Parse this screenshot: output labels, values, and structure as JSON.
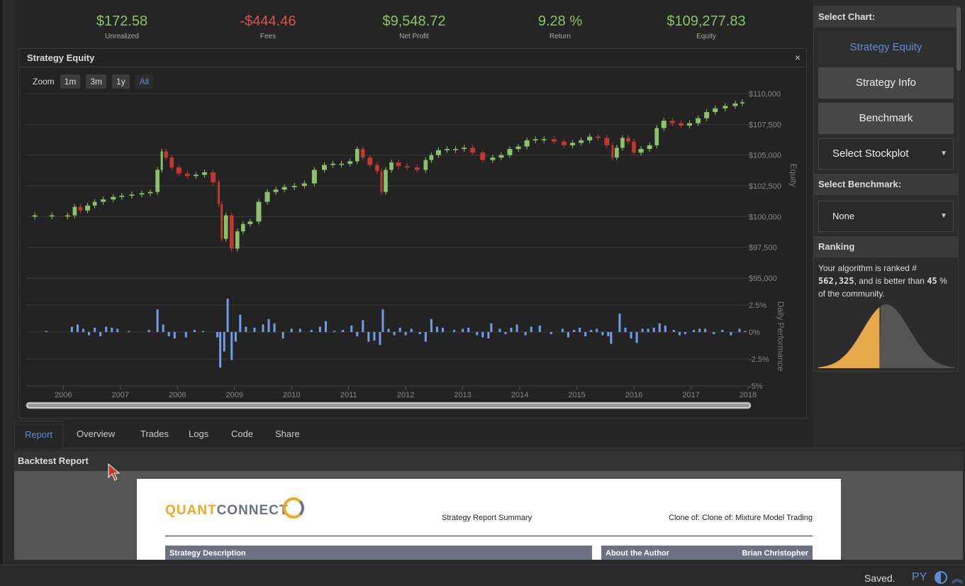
{
  "stats": [
    {
      "value": "$172.58",
      "label": "Unrealized",
      "tone": "green"
    },
    {
      "value": "-$444.46",
      "label": "Fees",
      "tone": "red"
    },
    {
      "value": "$9,548.72",
      "label": "Net Profit",
      "tone": "green"
    },
    {
      "value": "9.28 %",
      "label": "Return",
      "tone": "green"
    },
    {
      "value": "$109,277.83",
      "label": "Equity",
      "tone": "green"
    }
  ],
  "panel": {
    "title": "Strategy Equity",
    "close": "×"
  },
  "zoom": {
    "label": "Zoom",
    "buttons": [
      "1m",
      "3m",
      "1y",
      "All"
    ],
    "active": "All"
  },
  "chart_data": {
    "type": "candlestick",
    "equity_axis_label": "Equity",
    "equity_ticks": [
      "$110,000",
      "$107,500",
      "$105,000",
      "$102,500",
      "$100,000",
      "$97,500",
      "$95,000"
    ],
    "equity_ylim": [
      95000,
      110000
    ],
    "perf_axis_label": "Daily Performance",
    "perf_ticks": [
      "2.5%",
      "0%",
      "-2.5%",
      "-5%"
    ],
    "perf_ylim": [
      -5,
      2.5
    ],
    "x_ticks": [
      "2006",
      "2007",
      "2008",
      "2009",
      "2010",
      "2011",
      "2012",
      "2013",
      "2014",
      "2015",
      "2016",
      "2017",
      "2018"
    ],
    "colors": {
      "up": "#8bc36a",
      "down": "#c0392b",
      "bar": "#6f9fe8",
      "grid": "#3a3a3a"
    },
    "equity_path": [
      [
        2005.4,
        100000
      ],
      [
        2005.6,
        100100
      ],
      [
        2006.0,
        100100
      ],
      [
        2006.15,
        100100
      ],
      [
        2006.25,
        100800
      ],
      [
        2006.35,
        100500
      ],
      [
        2006.5,
        100900
      ],
      [
        2006.6,
        101200
      ],
      [
        2006.8,
        101400
      ],
      [
        2006.95,
        101600
      ],
      [
        2007.1,
        101700
      ],
      [
        2007.3,
        101800
      ],
      [
        2007.45,
        101900
      ],
      [
        2007.6,
        102000
      ],
      [
        2007.7,
        103800
      ],
      [
        2007.75,
        105300
      ],
      [
        2007.85,
        104800
      ],
      [
        2007.95,
        104000
      ],
      [
        2008.1,
        103500
      ],
      [
        2008.25,
        103300
      ],
      [
        2008.4,
        103400
      ],
      [
        2008.55,
        103600
      ],
      [
        2008.7,
        102800
      ],
      [
        2008.75,
        101000
      ],
      [
        2008.8,
        98200
      ],
      [
        2008.9,
        100100
      ],
      [
        2009.0,
        97400
      ],
      [
        2009.1,
        98800
      ],
      [
        2009.2,
        99400
      ],
      [
        2009.35,
        99600
      ],
      [
        2009.5,
        101200
      ],
      [
        2009.65,
        102000
      ],
      [
        2009.8,
        102200
      ],
      [
        2009.95,
        102400
      ],
      [
        2010.15,
        102500
      ],
      [
        2010.3,
        102700
      ],
      [
        2010.5,
        103800
      ],
      [
        2010.65,
        104200
      ],
      [
        2010.8,
        104300
      ],
      [
        2010.95,
        104300
      ],
      [
        2011.1,
        104500
      ],
      [
        2011.2,
        105500
      ],
      [
        2011.3,
        104800
      ],
      [
        2011.45,
        104200
      ],
      [
        2011.55,
        103700
      ],
      [
        2011.6,
        102000
      ],
      [
        2011.7,
        103800
      ],
      [
        2011.8,
        104400
      ],
      [
        2011.95,
        104100
      ],
      [
        2012.1,
        104000
      ],
      [
        2012.3,
        103800
      ],
      [
        2012.4,
        104600
      ],
      [
        2012.5,
        105000
      ],
      [
        2012.65,
        105400
      ],
      [
        2012.8,
        105500
      ],
      [
        2012.95,
        105500
      ],
      [
        2013.1,
        105600
      ],
      [
        2013.25,
        105200
      ],
      [
        2013.45,
        104600
      ],
      [
        2013.6,
        104800
      ],
      [
        2013.75,
        105000
      ],
      [
        2013.9,
        105500
      ],
      [
        2014.05,
        105700
      ],
      [
        2014.2,
        106200
      ],
      [
        2014.35,
        106300
      ],
      [
        2014.5,
        106300
      ],
      [
        2014.7,
        106100
      ],
      [
        2014.85,
        105800
      ],
      [
        2015.0,
        106000
      ],
      [
        2015.15,
        106200
      ],
      [
        2015.3,
        106500
      ],
      [
        2015.45,
        106400
      ],
      [
        2015.6,
        105800
      ],
      [
        2015.65,
        104800
      ],
      [
        2015.75,
        105600
      ],
      [
        2015.85,
        106400
      ],
      [
        2015.95,
        106100
      ],
      [
        2016.05,
        105200
      ],
      [
        2016.2,
        105500
      ],
      [
        2016.35,
        105800
      ],
      [
        2016.45,
        107200
      ],
      [
        2016.6,
        107800
      ],
      [
        2016.75,
        107600
      ],
      [
        2016.9,
        107400
      ],
      [
        2017.05,
        107600
      ],
      [
        2017.2,
        108000
      ],
      [
        2017.35,
        108500
      ],
      [
        2017.5,
        108800
      ],
      [
        2017.7,
        109000
      ],
      [
        2017.85,
        109200
      ],
      [
        2017.95,
        109300
      ]
    ],
    "perf_bars": [
      [
        2005.7,
        0.1
      ],
      [
        2006.15,
        0.5
      ],
      [
        2006.25,
        0.7
      ],
      [
        2006.35,
        0.3
      ],
      [
        2006.45,
        -0.3
      ],
      [
        2006.55,
        0.4
      ],
      [
        2006.65,
        -0.4
      ],
      [
        2006.75,
        0.5
      ],
      [
        2006.85,
        0.4
      ],
      [
        2006.95,
        0.3
      ],
      [
        2007.15,
        0.1
      ],
      [
        2007.5,
        0.2
      ],
      [
        2007.65,
        2.1
      ],
      [
        2007.75,
        0.7
      ],
      [
        2007.85,
        -0.4
      ],
      [
        2007.95,
        -0.6
      ],
      [
        2008.15,
        -0.5
      ],
      [
        2008.3,
        0.2
      ],
      [
        2008.45,
        0.1
      ],
      [
        2008.7,
        -0.5
      ],
      [
        2008.75,
        -3.3
      ],
      [
        2008.82,
        -1.8
      ],
      [
        2008.88,
        3.1
      ],
      [
        2008.95,
        -2.6
      ],
      [
        2009.02,
        -0.9
      ],
      [
        2009.1,
        1.6
      ],
      [
        2009.2,
        0.5
      ],
      [
        2009.35,
        0.4
      ],
      [
        2009.5,
        0.7
      ],
      [
        2009.6,
        1.2
      ],
      [
        2009.7,
        0.8
      ],
      [
        2009.85,
        -0.6
      ],
      [
        2010.0,
        0.3
      ],
      [
        2010.15,
        0.3
      ],
      [
        2010.35,
        0.2
      ],
      [
        2010.5,
        0.5
      ],
      [
        2010.6,
        1.0
      ],
      [
        2010.75,
        0.1
      ],
      [
        2010.9,
        0.2
      ],
      [
        2011.05,
        0.6
      ],
      [
        2011.15,
        -0.4
      ],
      [
        2011.25,
        1.1
      ],
      [
        2011.35,
        -0.9
      ],
      [
        2011.45,
        -0.8
      ],
      [
        2011.55,
        -1.2
      ],
      [
        2011.6,
        2.1
      ],
      [
        2011.7,
        0.3
      ],
      [
        2011.8,
        -0.3
      ],
      [
        2011.9,
        0.4
      ],
      [
        2012.0,
        -0.3
      ],
      [
        2012.1,
        0.3
      ],
      [
        2012.25,
        -0.2
      ],
      [
        2012.35,
        -0.9
      ],
      [
        2012.45,
        1.2
      ],
      [
        2012.55,
        0.5
      ],
      [
        2012.65,
        0.4
      ],
      [
        2012.85,
        0.2
      ],
      [
        2013.0,
        0.3
      ],
      [
        2013.1,
        0.4
      ],
      [
        2013.25,
        -0.3
      ],
      [
        2013.35,
        -0.5
      ],
      [
        2013.45,
        -0.6
      ],
      [
        2013.5,
        0.8
      ],
      [
        2013.65,
        0.3
      ],
      [
        2013.75,
        -0.2
      ],
      [
        2013.85,
        0.4
      ],
      [
        2013.95,
        0.7
      ],
      [
        2014.1,
        -0.3
      ],
      [
        2014.2,
        0.5
      ],
      [
        2014.35,
        0.6
      ],
      [
        2014.55,
        -0.2
      ],
      [
        2014.75,
        0.3
      ],
      [
        2014.85,
        -0.5
      ],
      [
        2014.95,
        0.2
      ],
      [
        2015.05,
        0.4
      ],
      [
        2015.15,
        -0.4
      ],
      [
        2015.25,
        0.2
      ],
      [
        2015.35,
        0.3
      ],
      [
        2015.45,
        -0.3
      ],
      [
        2015.55,
        -0.4
      ],
      [
        2015.6,
        -1.1
      ],
      [
        2015.75,
        1.7
      ],
      [
        2015.85,
        0.4
      ],
      [
        2015.95,
        -0.6
      ],
      [
        2016.05,
        -1.0
      ],
      [
        2016.15,
        0.3
      ],
      [
        2016.25,
        0.3
      ],
      [
        2016.35,
        0.4
      ],
      [
        2016.45,
        0.8
      ],
      [
        2016.55,
        0.6
      ],
      [
        2016.7,
        0.2
      ],
      [
        2016.8,
        -0.3
      ],
      [
        2016.9,
        -0.2
      ],
      [
        2017.05,
        0.2
      ],
      [
        2017.15,
        0.3
      ],
      [
        2017.25,
        0.3
      ],
      [
        2017.4,
        -0.2
      ],
      [
        2017.55,
        0.2
      ],
      [
        2017.7,
        -0.3
      ],
      [
        2017.85,
        0.3
      ],
      [
        2017.95,
        0.1
      ]
    ]
  },
  "tabs": [
    "Report",
    "Overview",
    "Trades",
    "Logs",
    "Code",
    "Share"
  ],
  "active_tab": "Report",
  "backtest": {
    "title": "Backtest Report",
    "logo_a": "QUANT",
    "logo_b": "CONNECT",
    "summary": "Strategy Report Summary",
    "clone": "Clone of: Clone of: Mixture Model Trading",
    "desc_bar": "Strategy Description",
    "author_bar": "About the Author",
    "author_name": "Brian Christopher"
  },
  "sidebar": {
    "select_chart_label": "Select Chart:",
    "buttons": [
      "Strategy Equity",
      "Strategy Info",
      "Benchmark"
    ],
    "stockplot": "Select Stockplot",
    "select_benchmark_label": "Select Benchmark:",
    "benchmark_value": "None",
    "ranking_label": "Ranking",
    "rank_pre": "Your algorithm is ranked #",
    "rank_num": "562,325",
    "rank_mid": ", and is better than",
    "rank_pct": "45",
    "rank_post": "% of the community.",
    "rank_fraction": 0.45
  },
  "status": {
    "saved": "Saved.",
    "lang": "PY"
  }
}
